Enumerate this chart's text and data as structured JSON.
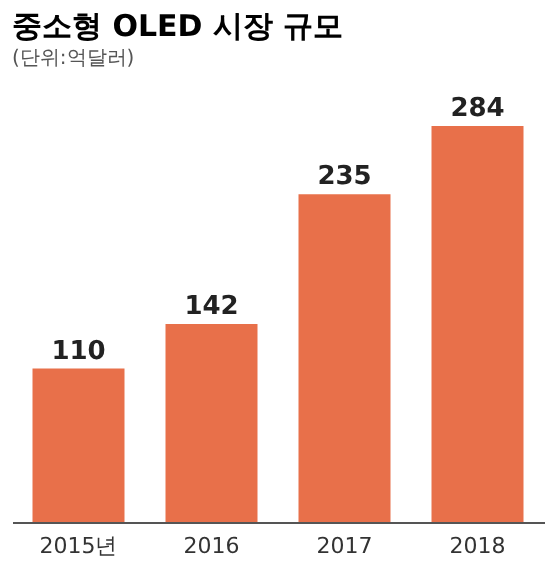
{
  "chart_data": {
    "type": "bar",
    "title": "중소형 OLED 시장 규모",
    "subtitle": "(단위:억달러)",
    "categories": [
      "2015년",
      "2016",
      "2017",
      "2018"
    ],
    "values": [
      110,
      142,
      235,
      284
    ],
    "color": "#e8704a",
    "data_labels": true
  }
}
